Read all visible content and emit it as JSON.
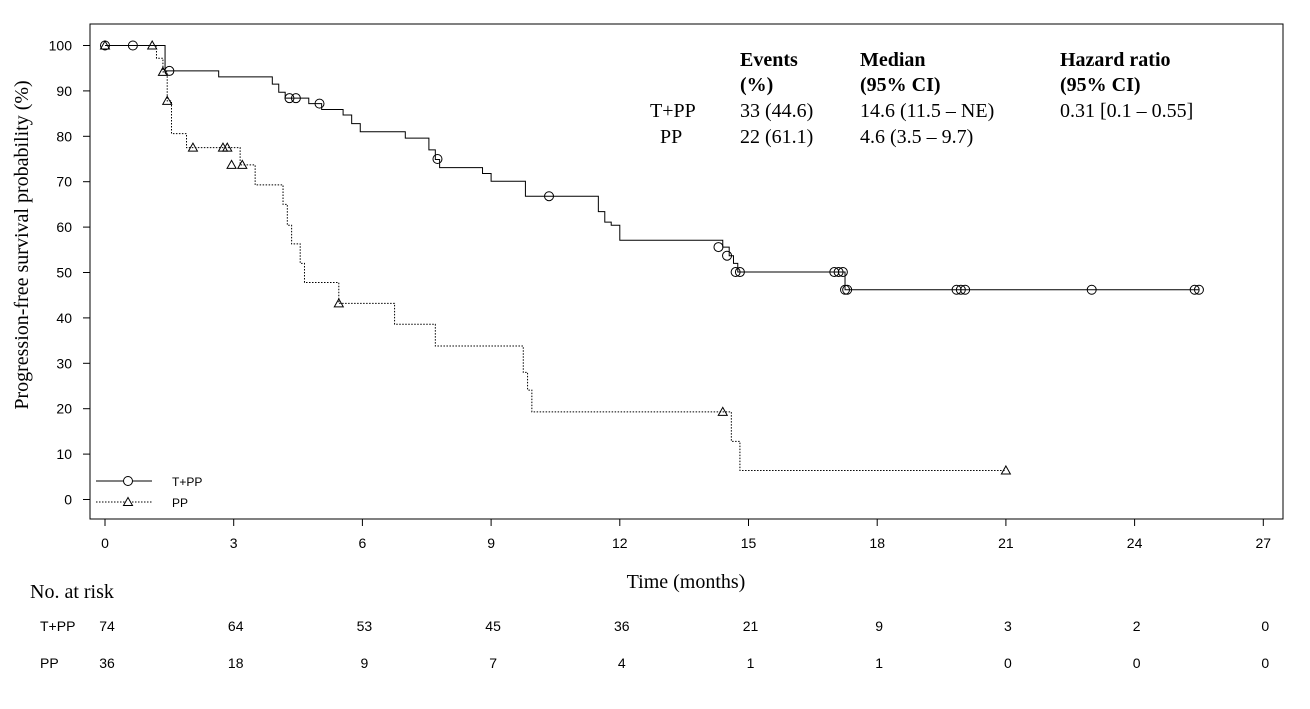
{
  "chart_data": {
    "type": "line",
    "subtype": "kaplan-meier",
    "xlabel": "Time (months)",
    "ylabel": "Progression-free survival probability (%)",
    "xlim": [
      0,
      27
    ],
    "ylim": [
      0,
      100
    ],
    "x_ticks": [
      0,
      3,
      6,
      9,
      12,
      15,
      18,
      21,
      24,
      27
    ],
    "y_ticks": [
      0,
      10,
      20,
      30,
      40,
      50,
      60,
      70,
      80,
      90,
      100
    ],
    "grid": false,
    "legend_position": "bottom-left",
    "series": [
      {
        "name": "T+PP",
        "line_style": "solid",
        "marker": "circle",
        "steps": [
          [
            0,
            100
          ],
          [
            1.4,
            94.4
          ],
          [
            2.65,
            93.1
          ],
          [
            3.9,
            91.5
          ],
          [
            4.05,
            89.7
          ],
          [
            4.2,
            88.4
          ],
          [
            4.75,
            87.2
          ],
          [
            5.05,
            85.9
          ],
          [
            5.55,
            84.7
          ],
          [
            5.75,
            82.8
          ],
          [
            5.95,
            81.0
          ],
          [
            7.0,
            79.6
          ],
          [
            7.55,
            77.0
          ],
          [
            7.7,
            74.9
          ],
          [
            7.8,
            73.1
          ],
          [
            8.8,
            71.8
          ],
          [
            9.0,
            70.1
          ],
          [
            9.8,
            66.8
          ],
          [
            11.3,
            66.8
          ],
          [
            11.5,
            63.4
          ],
          [
            11.65,
            61.1
          ],
          [
            11.8,
            60.4
          ],
          [
            12.0,
            57.1
          ],
          [
            14.4,
            55.6
          ],
          [
            14.55,
            53.7
          ],
          [
            14.65,
            52.0
          ],
          [
            14.75,
            50.1
          ],
          [
            17.25,
            46.2
          ],
          [
            25.5,
            46.2
          ]
        ],
        "censored": [
          [
            0,
            100
          ],
          [
            0.65,
            100
          ],
          [
            1.5,
            94.4
          ],
          [
            4.3,
            88.4
          ],
          [
            4.45,
            88.4
          ],
          [
            5.0,
            87.2
          ],
          [
            7.75,
            75.0
          ],
          [
            10.35,
            66.8
          ],
          [
            14.3,
            55.6
          ],
          [
            14.5,
            53.7
          ],
          [
            14.7,
            50.1
          ],
          [
            14.8,
            50.1
          ],
          [
            17.0,
            50.1
          ],
          [
            17.1,
            50.1
          ],
          [
            17.2,
            50.1
          ],
          [
            17.25,
            46.2
          ],
          [
            17.3,
            46.2
          ],
          [
            19.85,
            46.2
          ],
          [
            19.95,
            46.2
          ],
          [
            20.05,
            46.2
          ],
          [
            23.0,
            46.2
          ],
          [
            25.4,
            46.2
          ],
          [
            25.5,
            46.2
          ]
        ]
      },
      {
        "name": "PP",
        "line_style": "dotted",
        "marker": "triangle",
        "steps": [
          [
            0,
            100
          ],
          [
            1.2,
            97.2
          ],
          [
            1.35,
            94.2
          ],
          [
            1.45,
            87.8
          ],
          [
            1.55,
            80.6
          ],
          [
            1.9,
            77.5
          ],
          [
            3.15,
            73.7
          ],
          [
            3.5,
            69.3
          ],
          [
            4.15,
            65.0
          ],
          [
            4.25,
            60.4
          ],
          [
            4.35,
            56.3
          ],
          [
            4.55,
            52.0
          ],
          [
            4.65,
            47.8
          ],
          [
            5.45,
            43.2
          ],
          [
            6.75,
            38.6
          ],
          [
            7.7,
            33.8
          ],
          [
            9.75,
            28.0
          ],
          [
            9.85,
            24.1
          ],
          [
            9.95,
            19.3
          ],
          [
            14.6,
            12.8
          ],
          [
            14.8,
            6.4
          ],
          [
            21.0,
            6.4
          ]
        ],
        "censored": [
          [
            0,
            100
          ],
          [
            1.1,
            100
          ],
          [
            1.35,
            94.2
          ],
          [
            1.45,
            87.8
          ],
          [
            2.05,
            77.5
          ],
          [
            2.75,
            77.5
          ],
          [
            2.85,
            77.5
          ],
          [
            2.95,
            73.7
          ],
          [
            3.2,
            73.7
          ],
          [
            5.45,
            43.2
          ],
          [
            14.4,
            19.3
          ],
          [
            21.0,
            6.4
          ]
        ]
      }
    ],
    "annotation_table": {
      "headers": [
        [
          "Events",
          "(%)"
        ],
        [
          "Median",
          "(95% CI)"
        ],
        [
          "Hazard ratio",
          "(95% CI)"
        ]
      ],
      "rows": [
        {
          "group": "T+PP",
          "events": "33 (44.6)",
          "median": "14.6 (11.5 – NE)",
          "hazard_ratio": "0.31 [0.1 – 0.55]"
        },
        {
          "group": "PP",
          "events": "22 (61.1)",
          "median": "4.6 (3.5 – 9.7)",
          "hazard_ratio": ""
        }
      ]
    },
    "risk_table": {
      "title": "No. at risk",
      "times": [
        0,
        3,
        6,
        9,
        12,
        15,
        18,
        21,
        24,
        27
      ],
      "rows": [
        {
          "group": "T+PP",
          "counts": [
            74,
            64,
            53,
            45,
            36,
            21,
            9,
            3,
            2,
            0
          ]
        },
        {
          "group": "PP",
          "counts": [
            36,
            18,
            9,
            7,
            4,
            1,
            1,
            0,
            0,
            0
          ]
        }
      ]
    }
  }
}
